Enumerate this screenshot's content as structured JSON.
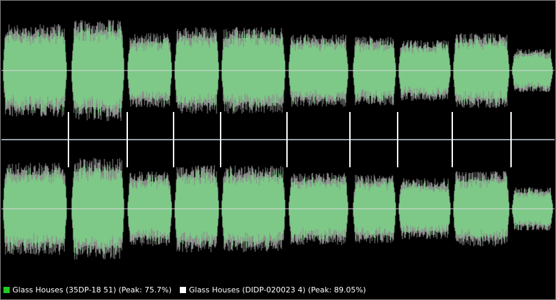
{
  "legend": {
    "items": [
      {
        "label": "Glass Houses (35DP-18 51) (Peak: 75.7%)"
      },
      {
        "label": "Glass Houses (DIDP-020023 4) (Peak: 89.05%)"
      }
    ]
  }
}
